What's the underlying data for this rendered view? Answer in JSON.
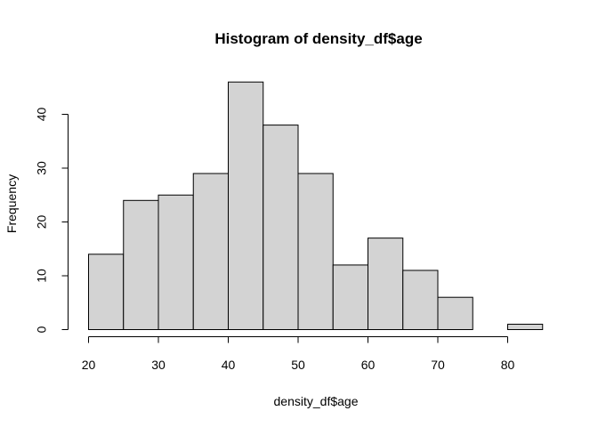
{
  "chart_data": {
    "type": "bar",
    "title": "Histogram of density_df$age",
    "xlabel": "density_df$age",
    "ylabel": "Frequency",
    "bin_edges": [
      20,
      25,
      30,
      35,
      40,
      45,
      50,
      55,
      60,
      65,
      70,
      75,
      80,
      85
    ],
    "values": [
      14,
      24,
      25,
      29,
      46,
      38,
      29,
      12,
      17,
      11,
      6,
      0,
      1
    ],
    "xlim": [
      20,
      85
    ],
    "ylim": [
      0,
      46
    ],
    "x_ticks": [
      20,
      30,
      40,
      50,
      60,
      70,
      80
    ],
    "y_ticks": [
      0,
      10,
      20,
      30,
      40
    ],
    "bar_color": "#d3d3d3",
    "grid": false
  }
}
